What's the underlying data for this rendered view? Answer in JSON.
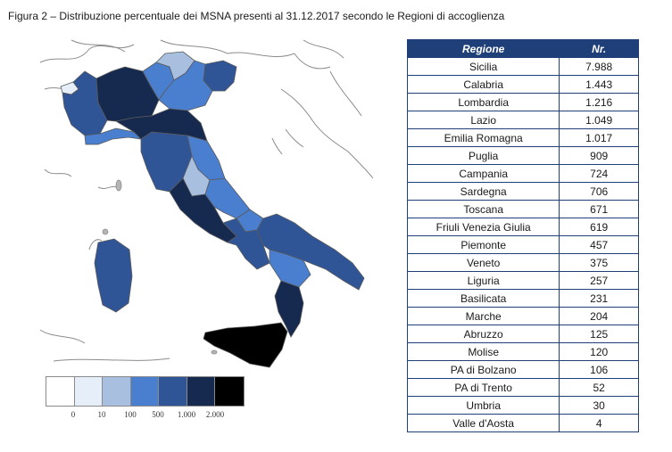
{
  "caption": "Figura 2 – Distribuzione percentuale dei MSNA presenti al 31.12.2017 secondo le Regioni di accoglienza",
  "table": {
    "headers": [
      "Regione",
      "Nr."
    ],
    "rows": [
      {
        "region": "Sicilia",
        "value": "7.988"
      },
      {
        "region": "Calabria",
        "value": "1.443"
      },
      {
        "region": "Lombardia",
        "value": "1.216"
      },
      {
        "region": "Lazio",
        "value": "1.049"
      },
      {
        "region": "Emilia Romagna",
        "value": "1.017"
      },
      {
        "region": "Puglia",
        "value": "909"
      },
      {
        "region": "Campania",
        "value": "724"
      },
      {
        "region": "Sardegna",
        "value": "706"
      },
      {
        "region": "Toscana",
        "value": "671"
      },
      {
        "region": "Friuli Venezia Giulia",
        "value": "619"
      },
      {
        "region": "Piemonte",
        "value": "457"
      },
      {
        "region": "Veneto",
        "value": "375"
      },
      {
        "region": "Liguria",
        "value": "257"
      },
      {
        "region": "Basilicata",
        "value": "231"
      },
      {
        "region": "Marche",
        "value": "204"
      },
      {
        "region": "Abruzzo",
        "value": "125"
      },
      {
        "region": "Molise",
        "value": "120"
      },
      {
        "region": "PA di Bolzano",
        "value": "106"
      },
      {
        "region": "PA di Trento",
        "value": "52"
      },
      {
        "region": "Umbria",
        "value": "30"
      },
      {
        "region": "Valle d'Aosta",
        "value": "4"
      }
    ]
  },
  "legend": {
    "labels": [
      "0",
      "10",
      "100",
      "500",
      "1.000",
      "2.000"
    ],
    "colors": [
      "#ffffff",
      "#e6eefa",
      "#a9bfe0",
      "#4a7fd0",
      "#2f5597",
      "#162a4f",
      "#000000"
    ]
  },
  "colors": {
    "header_bg": "#1f3f79",
    "table_border": "#1f3f79",
    "sea_border": "#9a9a9a"
  }
}
